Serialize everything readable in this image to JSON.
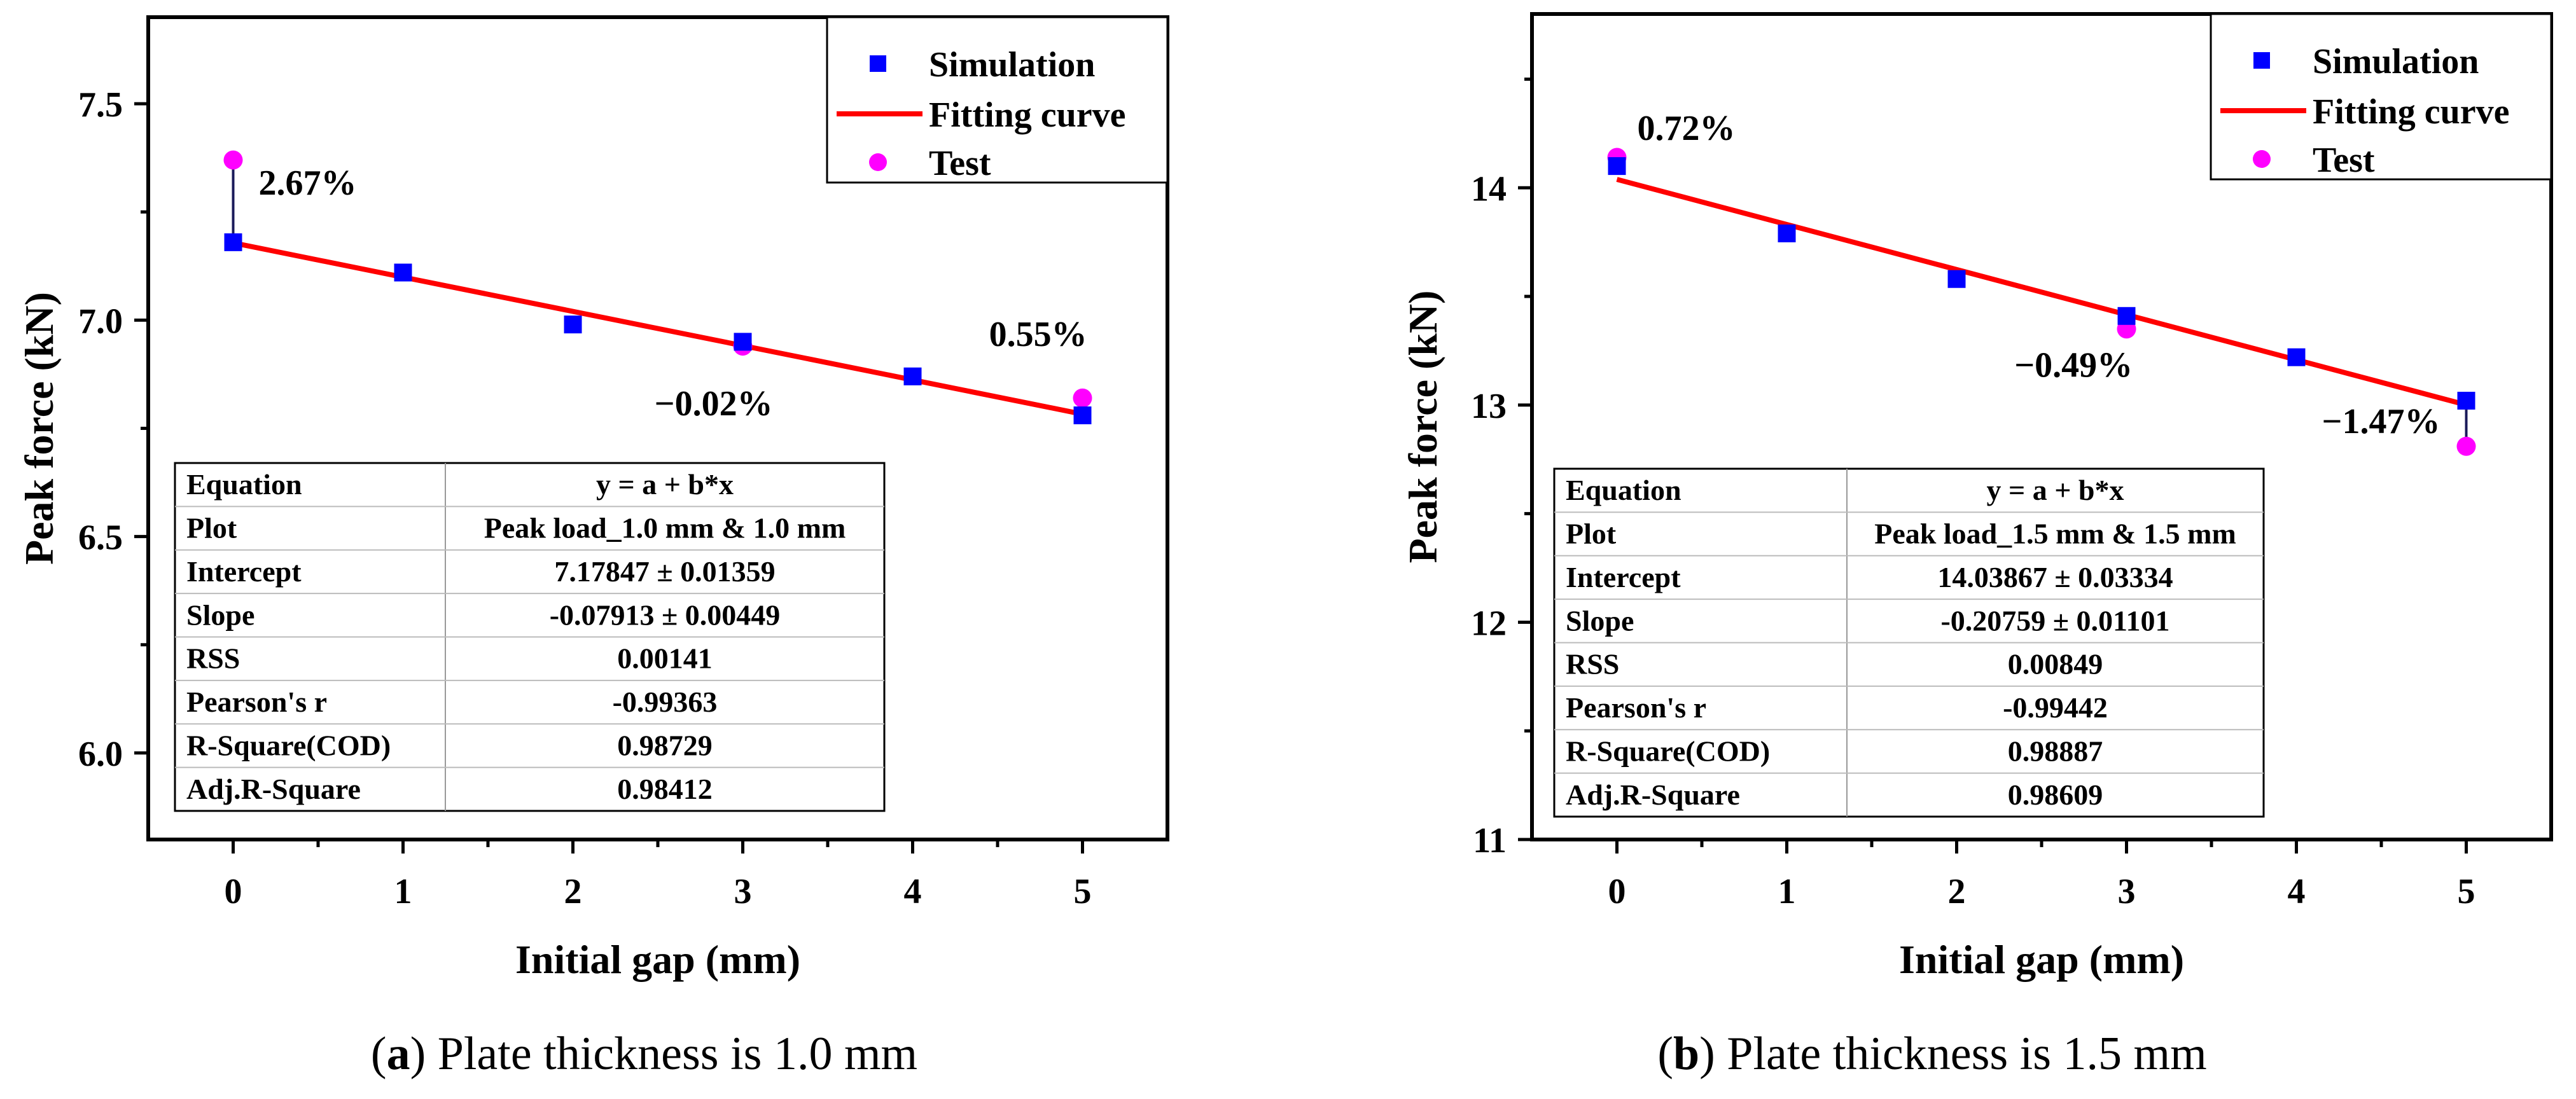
{
  "chart_data": [
    {
      "type": "scatter",
      "xlabel": "Initial gap (mm)",
      "ylabel": "Peak force  (kN)",
      "xlim": [
        -0.5,
        5.5
      ],
      "ylim": [
        5.8,
        7.7
      ],
      "xticks": [
        0,
        1,
        2,
        3,
        4,
        5
      ],
      "yticks": [
        6.0,
        6.5,
        7.0,
        7.5
      ],
      "ytick_labels": [
        "6.0",
        "6.5",
        "7.0",
        "7.5"
      ],
      "grid": false,
      "legend_position": "top-right",
      "series": [
        {
          "name": "Simulation",
          "kind": "marker-square",
          "color": "#0000ff",
          "x": [
            0,
            1,
            2,
            3,
            4,
            5
          ],
          "y": [
            7.18,
            7.11,
            6.99,
            6.95,
            6.87,
            6.78
          ]
        },
        {
          "name": "Fitting curve",
          "kind": "line",
          "color": "#ff0000",
          "x": [
            0,
            5
          ],
          "y": [
            7.17847,
            6.78282
          ]
        },
        {
          "name": "Test",
          "kind": "marker-circle",
          "color": "#ff00ff",
          "x": [
            0,
            3,
            5
          ],
          "y": [
            7.37,
            6.94,
            6.82
          ]
        }
      ],
      "annotations": [
        {
          "text": "2.67%",
          "x": 0.15,
          "y": 7.29
        },
        {
          "text": "−0.02%",
          "x": 2.48,
          "y": 6.78
        },
        {
          "text": "0.55%",
          "x": 4.45,
          "y": 6.94
        }
      ],
      "error_links": [
        {
          "x": 0,
          "y1": 7.18,
          "y2": 7.37
        }
      ],
      "fit_table": {
        "rows": [
          [
            "Equation",
            "y = a + b*x"
          ],
          [
            "Plot",
            "Peak load_1.0 mm & 1.0 mm"
          ],
          [
            "Intercept",
            "7.17847 ± 0.01359"
          ],
          [
            "Slope",
            "-0.07913 ± 0.00449"
          ],
          [
            "RSS",
            "0.00141"
          ],
          [
            "Pearson's r",
            "-0.99363"
          ],
          [
            "R-Square(COD)",
            "0.98729"
          ],
          [
            "Adj.R-Square",
            "0.98412"
          ]
        ]
      }
    },
    {
      "type": "scatter",
      "xlabel": "Initial gap (mm)",
      "ylabel": "Peak force  (kN)",
      "xlim": [
        -0.5,
        5.5
      ],
      "ylim": [
        11.0,
        14.8
      ],
      "xticks": [
        0,
        1,
        2,
        3,
        4,
        5
      ],
      "yticks": [
        11,
        12,
        13,
        14
      ],
      "ytick_labels": [
        "11",
        "12",
        "13",
        "14"
      ],
      "grid": false,
      "legend_position": "top-right",
      "series": [
        {
          "name": "Simulation",
          "kind": "marker-square",
          "color": "#0000ff",
          "x": [
            0,
            1,
            2,
            3,
            4,
            5
          ],
          "y": [
            14.1,
            13.79,
            13.58,
            13.41,
            13.22,
            13.02
          ]
        },
        {
          "name": "Fitting curve",
          "kind": "line",
          "color": "#ff0000",
          "x": [
            0,
            5
          ],
          "y": [
            14.03867,
            13.00072
          ]
        },
        {
          "name": "Test",
          "kind": "marker-circle",
          "color": "#ff00ff",
          "x": [
            0,
            3,
            5
          ],
          "y": [
            14.14,
            13.35,
            12.81
          ]
        }
      ],
      "annotations": [
        {
          "text": "0.72%",
          "x": 0.12,
          "y": 14.22
        },
        {
          "text": "−0.49%",
          "x": 2.34,
          "y": 13.13
        },
        {
          "text": "−1.47%",
          "x": 4.15,
          "y": 12.87
        }
      ],
      "error_links": [
        {
          "x": 5,
          "y1": 13.02,
          "y2": 12.81
        }
      ],
      "fit_table": {
        "rows": [
          [
            "Equation",
            "y = a + b*x"
          ],
          [
            "Plot",
            "Peak load_1.5 mm & 1.5 mm"
          ],
          [
            "Intercept",
            "14.03867 ± 0.03334"
          ],
          [
            "Slope",
            "-0.20759 ± 0.01101"
          ],
          [
            "RSS",
            "0.00849"
          ],
          [
            "Pearson's r",
            "-0.99442"
          ],
          [
            "R-Square(COD)",
            "0.98887"
          ],
          [
            "Adj.R-Square",
            "0.98609"
          ]
        ]
      }
    }
  ],
  "captions": [
    {
      "open": "(",
      "letter": "a",
      "text": ") Plate thickness is 1.0 mm"
    },
    {
      "open": "(",
      "letter": "b",
      "text": ") Plate thickness is 1.5 mm"
    }
  ]
}
